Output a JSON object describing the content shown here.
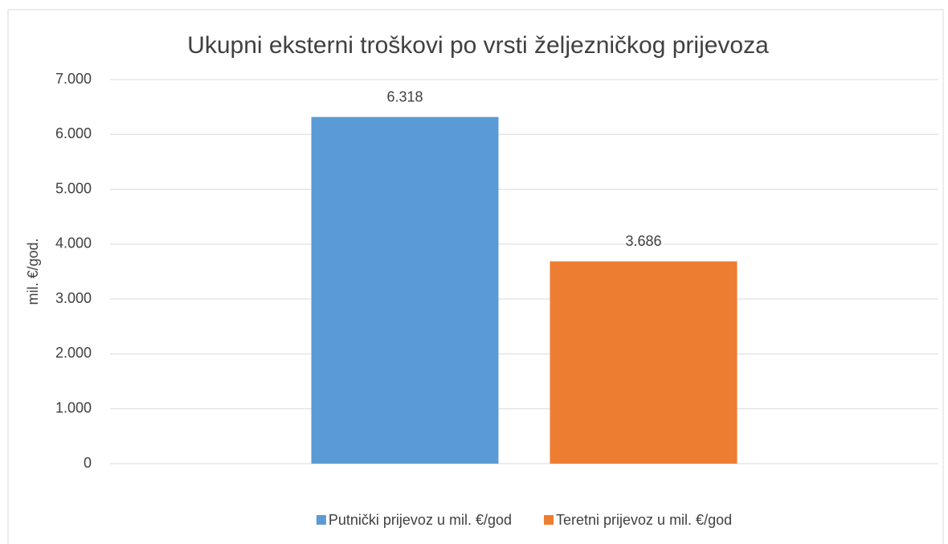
{
  "chart_data": {
    "type": "bar",
    "title": "Ukupni eksterni troškovi po vrsti željezničkog prijevoza",
    "y_label": "mil. €/god.",
    "categories": [
      null
    ],
    "series": [
      {
        "name": "Putnički prijevoz u mil. €/god",
        "color": "#5b9bd5",
        "values": [
          6318
        ],
        "value_labels": [
          "6.318"
        ]
      },
      {
        "name": "Teretni prijevoz u mil. €/god",
        "color": "#ed7d31",
        "values": [
          3686
        ],
        "value_labels": [
          "3.686"
        ]
      }
    ],
    "ylim": [
      0,
      7000
    ],
    "yticks": [
      0,
      {
        "value": 1000,
        "label": "1.000"
      },
      {
        "value": 2000,
        "label": "2.000"
      },
      {
        "value": 3000,
        "label": "3.000"
      },
      {
        "value": 4000,
        "label": "4.000"
      },
      {
        "value": 5000,
        "label": "5.000"
      },
      {
        "value": 6000,
        "label": "6.000"
      },
      {
        "value": 7000,
        "label": "7.000"
      }
    ],
    "grid": true,
    "legend": "bottom"
  }
}
